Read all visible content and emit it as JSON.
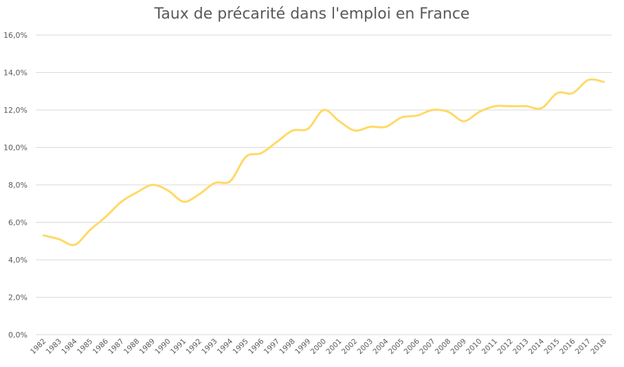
{
  "chart_data": {
    "type": "line",
    "title": "Taux de précarité dans l'emploi en France",
    "xlabel": "",
    "ylabel": "",
    "ylim": [
      0,
      16
    ],
    "y_ticks": [
      "0,0%",
      "2,0%",
      "4,0%",
      "6,0%",
      "8,0%",
      "10,0%",
      "12,0%",
      "14,0%",
      "16,0%"
    ],
    "grid": true,
    "legend": "none",
    "categories": [
      "1982",
      "1983",
      "1984",
      "1985",
      "1986",
      "1987",
      "1988",
      "1989",
      "1990",
      "1991",
      "1992",
      "1993",
      "1994",
      "1995",
      "1996",
      "1997",
      "1998",
      "1999",
      "2000",
      "2001",
      "2002",
      "2003",
      "2004",
      "2005",
      "2006",
      "2007",
      "2008",
      "2009",
      "2010",
      "2011",
      "2012",
      "2013",
      "2014",
      "2015",
      "2016",
      "2017",
      "2018"
    ],
    "series": [
      {
        "color": "#ffd966",
        "values": [
          5.3,
          5.1,
          4.8,
          5.6,
          6.3,
          7.1,
          7.6,
          8.0,
          7.7,
          7.1,
          7.5,
          8.1,
          8.2,
          9.5,
          9.7,
          10.3,
          10.9,
          11.0,
          12.0,
          11.4,
          10.9,
          11.1,
          11.1,
          11.6,
          11.7,
          12.0,
          11.9,
          11.4,
          11.9,
          12.2,
          12.2,
          12.2,
          12.1,
          12.9,
          12.9,
          13.6,
          13.5
        ]
      }
    ]
  }
}
